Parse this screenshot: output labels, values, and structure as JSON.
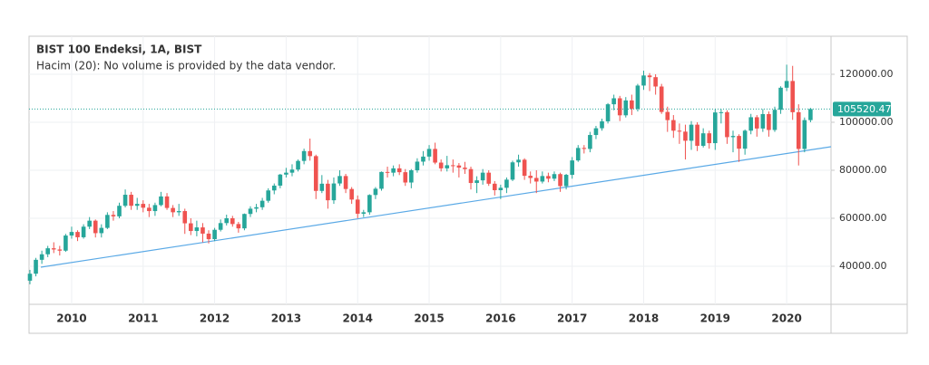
{
  "chart_data": {
    "type": "candlestick",
    "title": "BIST 100 Endeksi, 1A, BIST",
    "subtitle": "Hacim (20): No volume is provided by the data vendor.",
    "categories": [
      null,
      null,
      null,
      null,
      null,
      null,
      null,
      "2010",
      null,
      null,
      null,
      null,
      null,
      null,
      null,
      null,
      null,
      null,
      null,
      "2011",
      null,
      null,
      null,
      null,
      null,
      null,
      null,
      null,
      null,
      null,
      null,
      "2012",
      null,
      null,
      null,
      null,
      null,
      null,
      null,
      null,
      null,
      null,
      null,
      "2013",
      null,
      null,
      null,
      null,
      null,
      null,
      null,
      null,
      null,
      null,
      null,
      "2014",
      null,
      null,
      null,
      null,
      null,
      null,
      null,
      null,
      null,
      null,
      null,
      "2015",
      null,
      null,
      null,
      null,
      null,
      null,
      null,
      null,
      null,
      null,
      null,
      "2016",
      null,
      null,
      null,
      null,
      null,
      null,
      null,
      null,
      null,
      null,
      null,
      "2017",
      null,
      null,
      null,
      null,
      null,
      null,
      null,
      null,
      null,
      null,
      null,
      "2018",
      null,
      null,
      null,
      null,
      null,
      null,
      null,
      null,
      null,
      null,
      null,
      "2019",
      null,
      null,
      null,
      null,
      null,
      null,
      null,
      null,
      null,
      null,
      null,
      "2020",
      null,
      null,
      null,
      null
    ],
    "open": [
      34000,
      36900,
      42700,
      45000,
      47500,
      47000,
      46500,
      52800,
      54300,
      52100,
      56500,
      59000,
      53800,
      56000,
      61400,
      60800,
      65200,
      69800,
      65200,
      66000,
      64400,
      63000,
      65500,
      69100,
      64300,
      62500,
      63000,
      57900,
      54700,
      56200,
      53600,
      51300,
      55200,
      58000,
      60000,
      57600,
      55800,
      61800,
      64000,
      64600,
      67300,
      71600,
      73600,
      78200,
      79000,
      80300,
      83900,
      88000,
      85900,
      71400,
      74400,
      67500,
      74500,
      77600,
      72200,
      67800,
      61900,
      62500,
      69700,
      72300,
      79300,
      79000,
      80800,
      79200,
      74900,
      80000,
      83600,
      85700,
      88900,
      83200,
      80800,
      82100,
      82000,
      81100,
      80500,
      74700,
      75800,
      79000,
      74400,
      71700,
      72700,
      76100,
      83300,
      84400,
      77700,
      76800,
      75300,
      77600,
      76500,
      78400,
      73400,
      78100,
      84100,
      89300,
      88900,
      94700,
      97500,
      100400,
      107500,
      110000,
      102900,
      109100,
      105600,
      115300,
      119500,
      118800,
      114900,
      104300,
      100900,
      96500,
      96100,
      92300,
      99000,
      90200,
      95400,
      91300,
      104100,
      104200,
      93800,
      94300,
      89000,
      96500,
      102100,
      97400,
      103400,
      96800,
      105200,
      114400,
      117200,
      104200,
      88900,
      100900
    ],
    "high": [
      38500,
      43500,
      46500,
      48500,
      50000,
      48500,
      53500,
      56500,
      55000,
      57500,
      60500,
      59500,
      57500,
      62500,
      63000,
      66500,
      72000,
      71000,
      68500,
      67500,
      66000,
      66500,
      71000,
      70500,
      65500,
      66000,
      64000,
      60000,
      59000,
      58000,
      55000,
      56000,
      59500,
      61500,
      61000,
      58500,
      62000,
      65000,
      66000,
      68500,
      72500,
      74500,
      78500,
      81000,
      82500,
      84500,
      89000,
      93200,
      86500,
      78000,
      76000,
      77000,
      80000,
      78500,
      73000,
      69500,
      63500,
      70000,
      73000,
      79500,
      81500,
      82000,
      82500,
      80500,
      80500,
      85000,
      88000,
      90500,
      91500,
      84500,
      86000,
      84500,
      83000,
      83500,
      81500,
      77500,
      80500,
      80000,
      75500,
      74000,
      77000,
      84000,
      86500,
      85000,
      79500,
      80000,
      79500,
      79000,
      79500,
      79000,
      78500,
      85500,
      90500,
      90500,
      96000,
      98500,
      101500,
      108000,
      111500,
      111000,
      110500,
      111500,
      116000,
      121500,
      120500,
      120000,
      116000,
      106500,
      103000,
      99500,
      99000,
      100500,
      100000,
      97500,
      96500,
      105500,
      105500,
      105000,
      96500,
      95000,
      97000,
      103500,
      103000,
      105500,
      104500,
      106500,
      115000,
      124000,
      123500,
      107500,
      102000,
      106000
    ],
    "low": [
      32500,
      35800,
      41000,
      43800,
      45500,
      44500,
      46000,
      51500,
      50500,
      51500,
      55500,
      52000,
      52000,
      55500,
      59000,
      60000,
      64500,
      63500,
      63500,
      62500,
      60500,
      61000,
      65000,
      63500,
      60500,
      61000,
      53500,
      53000,
      52500,
      50000,
      49500,
      50500,
      54500,
      57000,
      56500,
      54000,
      55000,
      60500,
      62500,
      63500,
      66500,
      70000,
      72500,
      77000,
      77500,
      79500,
      82500,
      84000,
      68000,
      70500,
      64000,
      66000,
      73500,
      70500,
      66000,
      60000,
      60500,
      61500,
      68000,
      71500,
      77000,
      77500,
      78000,
      73500,
      72500,
      79000,
      82000,
      84000,
      82500,
      79500,
      79500,
      79000,
      77000,
      78500,
      72000,
      70500,
      74000,
      73500,
      69500,
      68000,
      70500,
      75500,
      81500,
      76000,
      74500,
      70500,
      74500,
      75000,
      75500,
      71000,
      72000,
      76500,
      83500,
      87000,
      87500,
      93000,
      96500,
      99500,
      105000,
      100500,
      102000,
      103000,
      104500,
      113500,
      113000,
      111500,
      103500,
      96000,
      93500,
      91000,
      84500,
      88500,
      88000,
      89500,
      89000,
      88500,
      99500,
      91000,
      87500,
      83500,
      86500,
      95000,
      94000,
      96000,
      94000,
      96000,
      103500,
      113000,
      101000,
      82000,
      87500,
      100000
    ],
    "close": [
      36900,
      42700,
      45000,
      47500,
      47000,
      46500,
      52800,
      54300,
      52100,
      56500,
      59000,
      53800,
      56000,
      61400,
      60800,
      65200,
      69800,
      65200,
      66000,
      64400,
      63000,
      65500,
      69100,
      64300,
      62500,
      63000,
      57900,
      54700,
      56200,
      53600,
      51300,
      55200,
      58000,
      60000,
      57600,
      55800,
      61800,
      64000,
      64600,
      67300,
      71600,
      73600,
      78200,
      79000,
      80300,
      83900,
      88000,
      85900,
      71400,
      74400,
      67500,
      74500,
      77600,
      72200,
      67800,
      61900,
      62500,
      69700,
      72300,
      79300,
      79000,
      80800,
      79200,
      74900,
      80000,
      83600,
      85700,
      88900,
      83200,
      80800,
      82100,
      82000,
      81100,
      80500,
      74700,
      75800,
      79000,
      74400,
      71700,
      72700,
      76100,
      83300,
      84400,
      77700,
      76800,
      75300,
      77600,
      76500,
      78400,
      73400,
      78100,
      84100,
      89300,
      88900,
      94700,
      97500,
      100400,
      107500,
      110000,
      102900,
      109100,
      105600,
      115300,
      119500,
      118800,
      114900,
      104300,
      100900,
      96500,
      96100,
      92300,
      99000,
      90200,
      95400,
      91300,
      104100,
      104200,
      93800,
      94300,
      89000,
      96500,
      102100,
      97400,
      103400,
      96800,
      105200,
      114400,
      117200,
      104200,
      88900,
      100900,
      105520
    ],
    "up_color": "#26a69a",
    "down_color": "#ef5350",
    "last_price": 105520.47,
    "last_price_color": "#26a69a",
    "ylim": [
      24150,
      135850
    ],
    "yticks": [
      {
        "value": 40000,
        "label": "40000.00"
      },
      {
        "value": 60000,
        "label": "60000.00"
      },
      {
        "value": 80000,
        "label": "80000.00"
      },
      {
        "value": 100000,
        "label": "100000.00"
      },
      {
        "value": 120000,
        "label": "120000.00"
      }
    ],
    "grid": true
  }
}
